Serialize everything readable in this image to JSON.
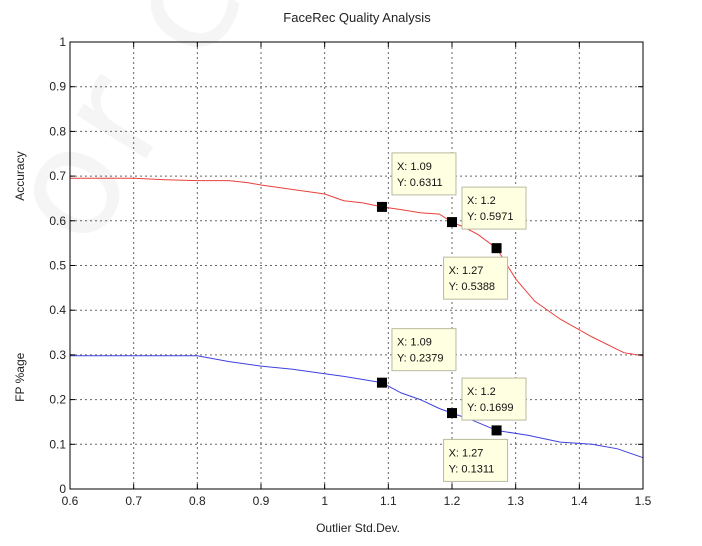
{
  "chart_data": {
    "type": "line",
    "title": "FaceRec Quality Analysis",
    "xlabel": "Outlier Std.Dev.",
    "ylabels": [
      "Accuracy",
      "FP %age"
    ],
    "xlim": [
      0.6,
      1.5
    ],
    "ylim": [
      0,
      1
    ],
    "xticks": [
      "0.6",
      "0.7",
      "0.8",
      "0.9",
      "1",
      "1.1",
      "1.2",
      "1.3",
      "1.4",
      "1.5"
    ],
    "yticks": [
      "0",
      "0.1",
      "0.2",
      "0.3",
      "0.4",
      "0.5",
      "0.6",
      "0.7",
      "0.8",
      "0.9",
      "1"
    ],
    "grid": true,
    "series": [
      {
        "color": "#e8413c",
        "x": [
          0.6,
          0.7,
          0.75,
          0.8,
          0.85,
          0.88,
          0.9,
          0.95,
          1.0,
          1.03,
          1.06,
          1.09,
          1.12,
          1.15,
          1.18,
          1.2,
          1.22,
          1.24,
          1.27,
          1.3,
          1.33,
          1.37,
          1.42,
          1.47,
          1.5
        ],
        "y": [
          0.695,
          0.695,
          0.692,
          0.69,
          0.69,
          0.685,
          0.68,
          0.67,
          0.66,
          0.645,
          0.64,
          0.6311,
          0.625,
          0.618,
          0.615,
          0.5971,
          0.585,
          0.57,
          0.5388,
          0.47,
          0.42,
          0.38,
          0.34,
          0.305,
          0.298
        ]
      },
      {
        "color": "#4040e0",
        "x": [
          0.6,
          0.7,
          0.8,
          0.85,
          0.9,
          0.95,
          1.0,
          1.03,
          1.06,
          1.09,
          1.12,
          1.15,
          1.18,
          1.2,
          1.23,
          1.27,
          1.32,
          1.37,
          1.42,
          1.46,
          1.5
        ],
        "y": [
          0.298,
          0.298,
          0.298,
          0.285,
          0.275,
          0.268,
          0.258,
          0.252,
          0.245,
          0.2379,
          0.215,
          0.2,
          0.18,
          0.1699,
          0.155,
          0.1311,
          0.12,
          0.105,
          0.1,
          0.09,
          0.07
        ]
      }
    ],
    "datatips": [
      {
        "x": 1.09,
        "y": 0.6311,
        "x_label": "X: 1.09",
        "y_label": "Y: 0.6311",
        "placement": "upper"
      },
      {
        "x": 1.2,
        "y": 0.5971,
        "x_label": "X: 1.2",
        "y_label": "Y: 0.5971",
        "placement": "upper-right"
      },
      {
        "x": 1.27,
        "y": 0.5388,
        "x_label": "X: 1.27",
        "y_label": "Y: 0.5388",
        "placement": "lower"
      },
      {
        "x": 1.09,
        "y": 0.2379,
        "x_label": "X: 1.09",
        "y_label": "Y: 0.2379",
        "placement": "upper"
      },
      {
        "x": 1.2,
        "y": 0.1699,
        "x_label": "X: 1.2",
        "y_label": "Y: 0.1699",
        "placement": "upper-right"
      },
      {
        "x": 1.27,
        "y": 0.1311,
        "x_label": "X: 1.27",
        "y_label": "Y: 0.1311",
        "placement": "lower"
      }
    ]
  },
  "watermark": "or copy"
}
